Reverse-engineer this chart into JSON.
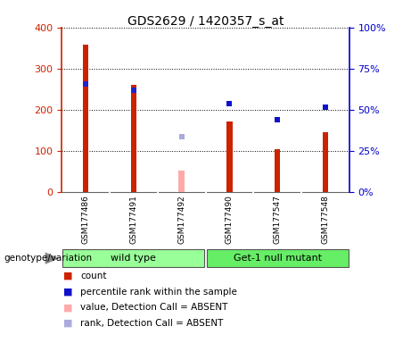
{
  "title": "GDS2629 / 1420357_s_at",
  "samples": [
    "GSM177486",
    "GSM177491",
    "GSM177492",
    "GSM177490",
    "GSM177547",
    "GSM177548"
  ],
  "count_values": [
    358,
    261,
    null,
    172,
    104,
    146
  ],
  "count_absent_values": [
    null,
    null,
    52,
    null,
    null,
    null
  ],
  "rank_values_left": [
    262,
    248,
    null,
    null,
    null,
    null
  ],
  "rank_absent_values_left": [
    null,
    null,
    135,
    null,
    null,
    null
  ],
  "percentile_rank_values_left": [
    null,
    null,
    null,
    214,
    176,
    206
  ],
  "left_axis_color": "#cc2200",
  "right_axis_color": "#0000cc",
  "count_bar_color": "#cc2200",
  "count_absent_bar_color": "#ffaaaa",
  "rank_marker_color": "#2222cc",
  "rank_absent_marker_color": "#aaaadd",
  "percentile_marker_color": "#1111cc",
  "ylim_left": [
    0,
    400
  ],
  "ylim_right": [
    0,
    100
  ],
  "yticks_left": [
    0,
    100,
    200,
    300,
    400
  ],
  "ytick_labels_right": [
    "0%",
    "25%",
    "50%",
    "75%",
    "100%"
  ],
  "bg_color": "#cccccc",
  "plot_bg_color": "#ffffff",
  "bar_width": 0.12,
  "absent_bar_width": 0.08,
  "marker_size": 5,
  "wt_color": "#99ff99",
  "mut_color": "#66ee66"
}
